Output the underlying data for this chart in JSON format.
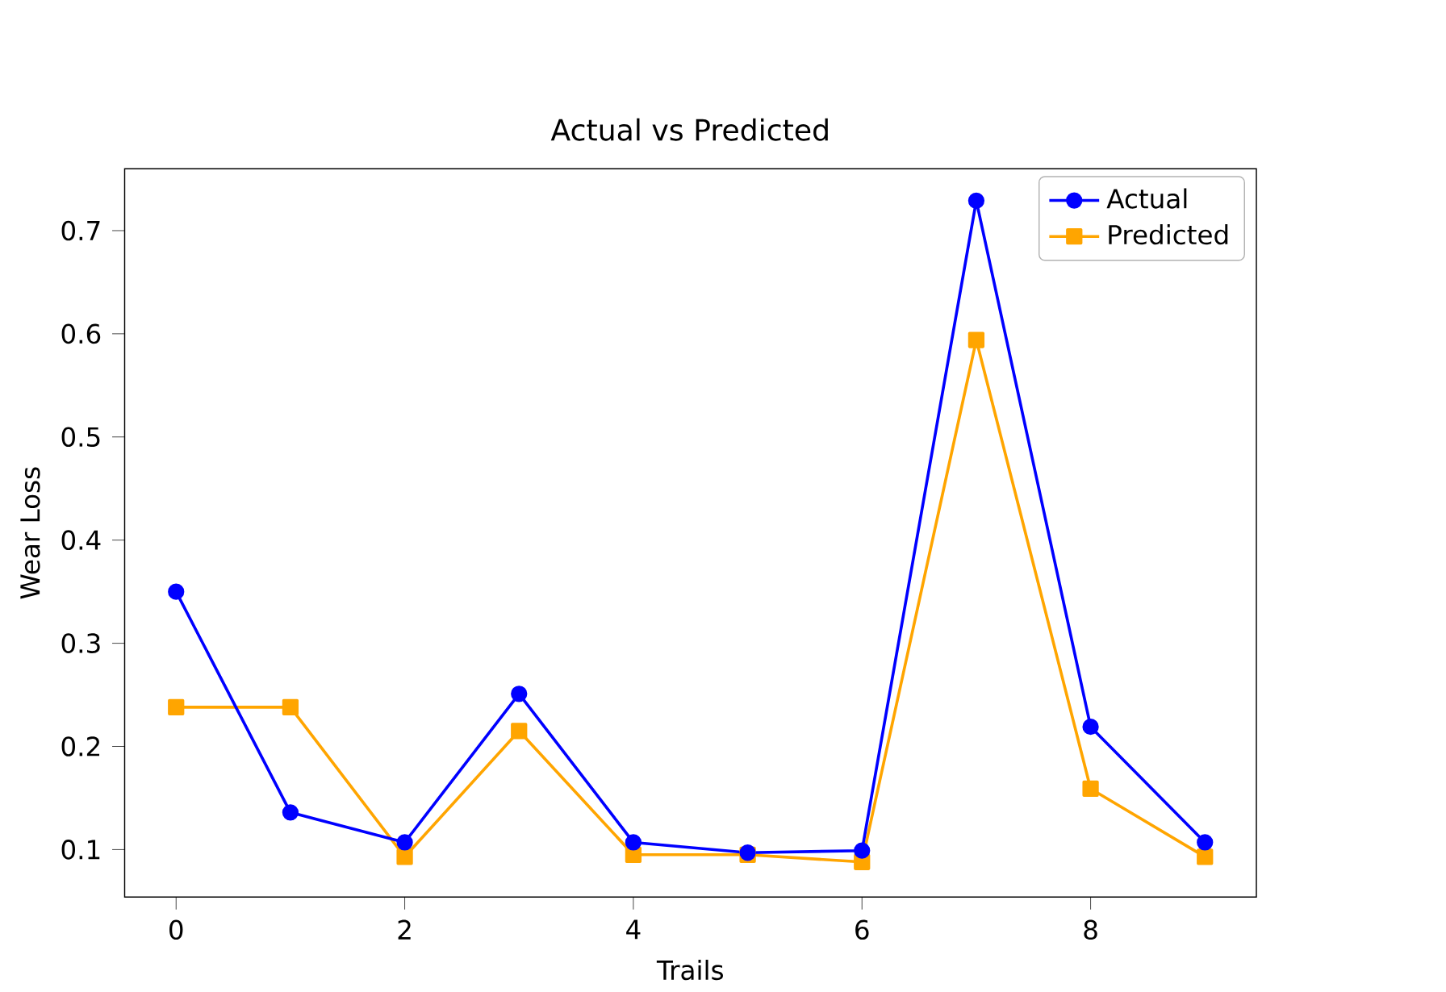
{
  "chart_data": {
    "type": "line",
    "title": "Actual vs Predicted",
    "xlabel": "Trails",
    "ylabel": "Wear Loss",
    "x": [
      0,
      1,
      2,
      3,
      4,
      5,
      6,
      7,
      8,
      9
    ],
    "series": [
      {
        "name": "Actual",
        "color": "#0000ff",
        "marker": "circle",
        "values": [
          0.35,
          0.136,
          0.107,
          0.251,
          0.107,
          0.097,
          0.099,
          0.729,
          0.219,
          0.107
        ]
      },
      {
        "name": "Predicted",
        "color": "#ffa500",
        "marker": "square",
        "values": [
          0.238,
          0.238,
          0.093,
          0.215,
          0.095,
          0.095,
          0.088,
          0.594,
          0.159,
          0.093
        ]
      }
    ],
    "xlim": [
      -0.45,
      9.45
    ],
    "ylim": [
      0.054,
      0.76
    ],
    "xticks": [
      0,
      2,
      4,
      6,
      8
    ],
    "yticks": [
      0.1,
      0.2,
      0.3,
      0.4,
      0.5,
      0.6,
      0.7
    ],
    "legend": "top right",
    "grid": false
  }
}
